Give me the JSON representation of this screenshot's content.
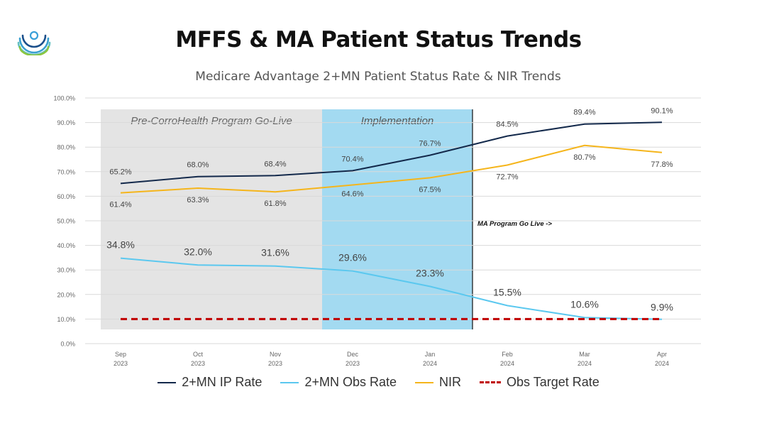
{
  "page": {
    "title": "MFFS & MA Patient Status Trends",
    "logo_icon": "concentric-arcs-logo-icon"
  },
  "chart_data": {
    "type": "line",
    "title": "Medicare Advantage 2+MN Patient Status Rate & NIR Trends",
    "categories": [
      [
        "Sep",
        "2023"
      ],
      [
        "Oct",
        "2023"
      ],
      [
        "Nov",
        "2023"
      ],
      [
        "Dec",
        "2023"
      ],
      [
        "Jan",
        "2024"
      ],
      [
        "Feb",
        "2024"
      ],
      [
        "Mar",
        "2024"
      ],
      [
        "Apr",
        "2024"
      ]
    ],
    "ylim": [
      0,
      100
    ],
    "yticks": [
      "0.0%",
      "10.0%",
      "20.0%",
      "30.0%",
      "40.0%",
      "50.0%",
      "60.0%",
      "70.0%",
      "80.0%",
      "90.0%",
      "100.0%"
    ],
    "grid": true,
    "legend_position": "bottom",
    "series": [
      {
        "name": "2+MN IP Rate",
        "color": "#13294b",
        "style": "solid",
        "values": [
          65.2,
          68.0,
          68.4,
          70.4,
          76.7,
          84.5,
          89.4,
          90.1
        ],
        "labels": [
          "65.2%",
          "68.0%",
          "68.4%",
          "70.4%",
          "76.7%",
          "84.5%",
          "89.4%",
          "90.1%"
        ]
      },
      {
        "name": "2+MN Obs Rate",
        "color": "#5bc8ef",
        "style": "solid",
        "values": [
          34.8,
          32.0,
          31.6,
          29.6,
          23.3,
          15.5,
          10.6,
          9.9
        ],
        "labels": [
          "34.8%",
          "32.0%",
          "31.6%",
          "29.6%",
          "23.3%",
          "15.5%",
          "10.6%",
          "9.9%"
        ]
      },
      {
        "name": "NIR",
        "color": "#f5b51b",
        "style": "solid",
        "values": [
          61.4,
          63.3,
          61.8,
          64.6,
          67.5,
          72.7,
          80.7,
          77.8
        ],
        "labels": [
          "61.4%",
          "63.3%",
          "61.8%",
          "64.6%",
          "67.5%",
          "72.7%",
          "80.7%",
          "77.8%"
        ]
      },
      {
        "name": "Obs Target Rate",
        "color": "#c00000",
        "style": "dashed",
        "values": [
          10,
          10,
          10,
          10,
          10,
          10,
          10,
          10
        ],
        "labels": []
      }
    ],
    "regions": [
      {
        "label": "Pre-CorroHealth Program Go-Live",
        "color": "#e4e4e4"
      },
      {
        "label": "Implementation",
        "color": "#a3daf1"
      }
    ],
    "annotations": [
      {
        "text": "MA Program Go Live ->"
      }
    ]
  }
}
